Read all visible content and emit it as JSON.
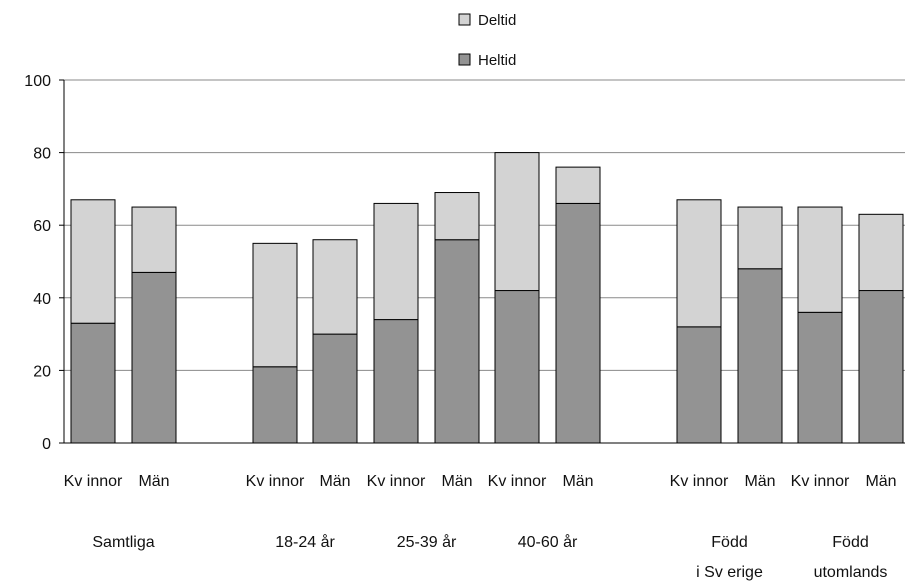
{
  "chart_data": {
    "type": "bar",
    "stacked": true,
    "ylim": [
      0,
      100
    ],
    "yticks": [
      0,
      20,
      40,
      60,
      80,
      100
    ],
    "grid": true,
    "legend_placement": "top-center",
    "categories": [
      "Kv innor",
      "Män",
      "Kv innor",
      "Män",
      "Kv innor",
      "Män",
      "Kv innor",
      "Män",
      "Kv innor",
      "Män",
      "Kv innor",
      "Män"
    ],
    "groups": [
      {
        "lines": [
          "Samtliga"
        ],
        "indices": [
          0,
          1
        ]
      },
      {
        "lines": [
          "18-24 år"
        ],
        "indices": [
          2,
          3
        ]
      },
      {
        "lines": [
          "25-39 år"
        ],
        "indices": [
          4,
          5
        ]
      },
      {
        "lines": [
          "40-60 år"
        ],
        "indices": [
          6,
          7
        ]
      },
      {
        "lines": [
          "Född",
          "i Sv erige"
        ],
        "indices": [
          8,
          9
        ]
      },
      {
        "lines": [
          "Född",
          "utomlands"
        ],
        "indices": [
          10,
          11
        ]
      }
    ],
    "series": [
      {
        "name": "Heltid",
        "color": "#939393",
        "values": [
          33,
          47,
          21,
          30,
          34,
          56,
          42,
          66,
          32,
          48,
          36,
          42
        ]
      },
      {
        "name": "Deltid",
        "color": "#d3d3d3",
        "values": [
          34,
          18,
          34,
          26,
          32,
          13,
          38,
          10,
          35,
          17,
          29,
          21
        ]
      }
    ],
    "legend_order": [
      "Deltid",
      "Heltid"
    ]
  }
}
